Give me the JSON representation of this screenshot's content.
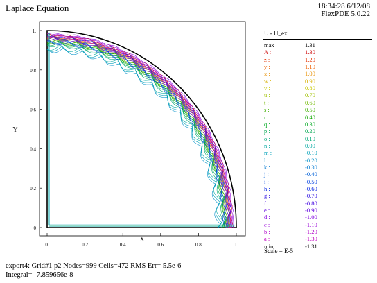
{
  "header": {
    "title": "Laplace Equation",
    "timestamp": "18:34:28 6/12/08",
    "software": "FlexPDE 5.0.22"
  },
  "legend": {
    "title": "U - U_ex",
    "scale_note": "Scale = E-5",
    "entries": [
      {
        "label": "max",
        "value": "1.31",
        "color": "#000000"
      },
      {
        "label": "A :",
        "value": "1.30",
        "color": "#cc0000"
      },
      {
        "label": "z :",
        "value": "1.20",
        "color": "#e23000"
      },
      {
        "label": "y :",
        "value": "1.10",
        "color": "#ee6000"
      },
      {
        "label": "x :",
        "value": "1.00",
        "color": "#e89000"
      },
      {
        "label": "w :",
        "value": "0.90",
        "color": "#d8b000"
      },
      {
        "label": "v :",
        "value": "0.80",
        "color": "#c8c800"
      },
      {
        "label": "u :",
        "value": "0.70",
        "color": "#a0c000"
      },
      {
        "label": "t :",
        "value": "0.60",
        "color": "#70b800"
      },
      {
        "label": "s :",
        "value": "0.50",
        "color": "#40b000"
      },
      {
        "label": "r :",
        "value": "0.40",
        "color": "#10a800"
      },
      {
        "label": "q :",
        "value": "0.30",
        "color": "#00a820"
      },
      {
        "label": "p :",
        "value": "0.20",
        "color": "#00a850"
      },
      {
        "label": "o :",
        "value": "0.10",
        "color": "#00a878"
      },
      {
        "label": "n :",
        "value": "0.00",
        "color": "#00a8a0"
      },
      {
        "label": "m :",
        "value": "-0.10",
        "color": "#00a0b8"
      },
      {
        "label": "l :",
        "value": "-0.20",
        "color": "#0090c8"
      },
      {
        "label": "k :",
        "value": "-0.30",
        "color": "#0078d0"
      },
      {
        "label": "j :",
        "value": "-0.40",
        "color": "#0060d8"
      },
      {
        "label": "i :",
        "value": "-0.50",
        "color": "#0040e0"
      },
      {
        "label": "h :",
        "value": "-0.60",
        "color": "#0020e0"
      },
      {
        "label": "g :",
        "value": "-0.70",
        "color": "#2000e0"
      },
      {
        "label": "f :",
        "value": "-0.80",
        "color": "#4000e0"
      },
      {
        "label": "e :",
        "value": "-0.90",
        "color": "#6000e0"
      },
      {
        "label": "d :",
        "value": "-1.00",
        "color": "#8000e0"
      },
      {
        "label": "c :",
        "value": "-1.10",
        "color": "#9800d8"
      },
      {
        "label": "b :",
        "value": "-1.20",
        "color": "#b000c8"
      },
      {
        "label": "a :",
        "value": "-1.30",
        "color": "#c000c0"
      },
      {
        "label": "min",
        "value": "-1.31",
        "color": "#000000"
      }
    ]
  },
  "footer": {
    "line1": "export4:  Grid#1  p2  Nodes=999 Cells=472 RMS Err= 5.5e-6",
    "line2": "Integral= -7.859656e-8"
  },
  "chart_data": {
    "type": "contour",
    "title": "Laplace Equation",
    "xlabel": "X",
    "ylabel": "Y",
    "xlim": [
      0,
      1
    ],
    "ylim": [
      0,
      1
    ],
    "x_ticks": [
      "0.",
      "0.2",
      "0.4",
      "0.6",
      "0.8",
      "1."
    ],
    "y_ticks": [
      "0",
      "0.2",
      "0.4",
      "0.6",
      "0.8",
      "1."
    ],
    "domain": "quarter disk, radius 1",
    "contour_levels": [
      1.3,
      1.2,
      1.1,
      1.0,
      0.9,
      0.8,
      0.7,
      0.6,
      0.5,
      0.4,
      0.3,
      0.2,
      0.1,
      0.0,
      -0.1,
      -0.2,
      -0.3,
      -0.4,
      -0.5,
      -0.6,
      -0.7,
      -0.8,
      -0.9,
      -1.0,
      -1.1,
      -1.2,
      -1.3
    ],
    "scale": "E-5",
    "max": 1.31,
    "min": -1.31
  }
}
